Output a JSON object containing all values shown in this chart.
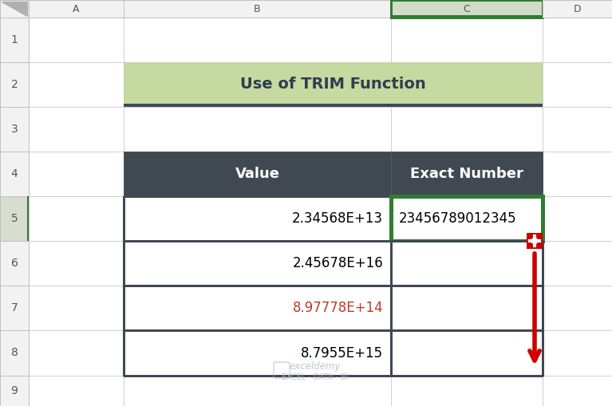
{
  "title": "Use of TRIM Function",
  "title_bg": "#c6d9a0",
  "title_border": "#3a4a5a",
  "header_bg": "#404952",
  "header_text_color": "#ffffff",
  "header_cols": [
    "Value",
    "Exact Number"
  ],
  "rows": [
    [
      "2.34568E+13",
      "23456789012345"
    ],
    [
      "2.45678E+16",
      ""
    ],
    [
      "8.97778E+14",
      ""
    ],
    [
      "8.7955E+15",
      ""
    ]
  ],
  "row7_text_color": "#c0392b",
  "col_letters": [
    "A",
    "B",
    "C",
    "D"
  ],
  "row_numbers": [
    "1",
    "2",
    "3",
    "4",
    "5",
    "6",
    "7",
    "8",
    "9"
  ],
  "bg_color": "#ffffff",
  "cell_border_color": "#404952",
  "light_border_color": "#d0d0d0",
  "selected_col": "C",
  "selected_col_header_bg": "#d0dcc8",
  "selected_row": 5,
  "selected_row_header_bg": "#d8ddd0",
  "c5_border_color": "#2e7d32",
  "crosshair_color": "#cc0000",
  "arrow_color": "#cc0000",
  "col_header_bg": "#f2f2f2",
  "row_header_bg": "#f2f2f2",
  "corner_bg": "#f2f2f2",
  "watermark_color": "#b0b8c0",
  "wm_icon_color": "#b0b8c0"
}
